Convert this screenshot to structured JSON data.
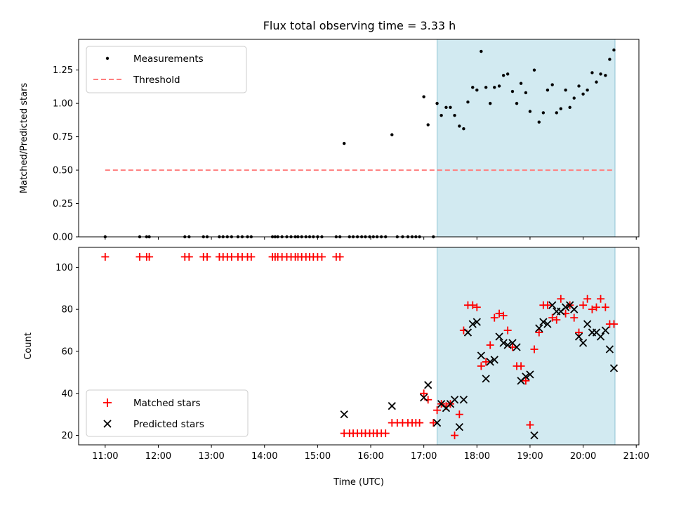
{
  "title": "Flux total observing time = 3.33 h",
  "chart_data": [
    {
      "type": "scatter",
      "ylabel": "Matched/Predicted stars",
      "xlim": [
        10.5,
        21.05
      ],
      "ylim": [
        0,
        1.48
      ],
      "yticks": [
        "0.00",
        "0.25",
        "0.50",
        "0.75",
        "1.00",
        "1.25"
      ],
      "ytick_values": [
        0,
        0.25,
        0.5,
        0.75,
        1.0,
        1.25
      ],
      "shaded_span": [
        17.25,
        20.6
      ],
      "shade_color": "#add8e6",
      "legend": [
        {
          "name": "Measurements",
          "marker": "dot",
          "color": "#000000"
        },
        {
          "name": "Threshold",
          "marker": "dashed-line",
          "color": "#ff7f7f"
        }
      ],
      "threshold": {
        "x": [
          11.0,
          20.6
        ],
        "y": 0.5
      },
      "x": [
        11.0,
        11.65,
        11.78,
        11.83,
        12.5,
        12.58,
        12.85,
        12.92,
        13.15,
        13.22,
        13.3,
        13.38,
        13.5,
        13.58,
        13.68,
        13.75,
        14.15,
        14.2,
        14.25,
        14.33,
        14.42,
        14.5,
        14.58,
        14.63,
        14.7,
        14.78,
        14.85,
        14.92,
        15.0,
        15.08,
        15.35,
        15.42,
        15.5,
        15.6,
        15.67,
        15.75,
        15.83,
        15.9,
        15.98,
        16.05,
        16.12,
        16.2,
        16.28,
        16.4,
        16.5,
        16.6,
        16.7,
        16.78,
        16.85,
        16.92,
        17.0,
        17.08,
        17.18,
        17.25,
        17.33,
        17.42,
        17.5,
        17.58,
        17.67,
        17.75,
        17.83,
        17.92,
        18.0,
        18.08,
        18.17,
        18.25,
        18.33,
        18.42,
        18.5,
        18.58,
        18.67,
        18.75,
        18.83,
        18.92,
        19.0,
        19.08,
        19.17,
        19.25,
        19.33,
        19.42,
        19.5,
        19.58,
        19.67,
        19.75,
        19.83,
        19.92,
        20.0,
        20.08,
        20.17,
        20.25,
        20.33,
        20.42,
        20.5,
        20.58
      ],
      "y": [
        0,
        0,
        0,
        0,
        0,
        0,
        0,
        0,
        0,
        0,
        0,
        0,
        0,
        0,
        0,
        0,
        0,
        0,
        0,
        0,
        0,
        0,
        0,
        0,
        0,
        0,
        0,
        0,
        0,
        0,
        0,
        0,
        0.7,
        0,
        0,
        0,
        0,
        0,
        0,
        0,
        0,
        0,
        0,
        0.765,
        0,
        0,
        0,
        0,
        0,
        0,
        1.05,
        0.84,
        0,
        1.0,
        0.91,
        0.97,
        0.97,
        0.91,
        0.83,
        0.81,
        1.01,
        1.12,
        1.1,
        1.39,
        1.12,
        1.0,
        1.12,
        1.13,
        1.21,
        1.22,
        1.09,
        1.0,
        1.15,
        1.08,
        0.94,
        1.25,
        0.86,
        0.93,
        1.1,
        1.14,
        0.93,
        0.96,
        1.1,
        0.97,
        1.04,
        1.13,
        1.07,
        1.1,
        1.23,
        1.16,
        1.22,
        1.21,
        1.33,
        1.4
      ]
    },
    {
      "type": "scatter",
      "ylabel": "Count",
      "xlabel": "Time (UTC)",
      "xlim": [
        10.5,
        21.05
      ],
      "ylim": [
        15.5,
        109.5
      ],
      "yticks": [
        "20",
        "40",
        "60",
        "80",
        "100"
      ],
      "ytick_values": [
        20,
        40,
        60,
        80,
        100
      ],
      "xticks": [
        "11:00",
        "12:00",
        "13:00",
        "14:00",
        "15:00",
        "16:00",
        "17:00",
        "18:00",
        "19:00",
        "20:00",
        "21:00"
      ],
      "xtick_values": [
        11,
        12,
        13,
        14,
        15,
        16,
        17,
        18,
        19,
        20,
        21
      ],
      "shaded_span": [
        17.25,
        20.6
      ],
      "shade_color": "#add8e6",
      "legend": [
        {
          "name": "Matched stars",
          "marker": "plus",
          "color": "#ff0000"
        },
        {
          "name": "Predicted stars",
          "marker": "x",
          "color": "#000000"
        }
      ],
      "matched": {
        "x": [
          11.0,
          11.65,
          11.78,
          11.83,
          12.5,
          12.58,
          12.85,
          12.92,
          13.15,
          13.22,
          13.3,
          13.38,
          13.5,
          13.58,
          13.68,
          13.75,
          14.15,
          14.2,
          14.25,
          14.33,
          14.42,
          14.5,
          14.58,
          14.63,
          14.7,
          14.78,
          14.85,
          14.92,
          15.0,
          15.08,
          15.35,
          15.42,
          15.5,
          15.6,
          15.67,
          15.75,
          15.83,
          15.9,
          15.98,
          16.05,
          16.12,
          16.2,
          16.28,
          16.4,
          16.5,
          16.6,
          16.7,
          16.78,
          16.85,
          16.92,
          17.0,
          17.08,
          17.18,
          17.25,
          17.33,
          17.42,
          17.5,
          17.58,
          17.67,
          17.75,
          17.83,
          17.92,
          18.0,
          18.08,
          18.17,
          18.25,
          18.33,
          18.42,
          18.5,
          18.58,
          18.67,
          18.75,
          18.83,
          18.92,
          19.0,
          19.08,
          19.17,
          19.25,
          19.33,
          19.42,
          19.5,
          19.58,
          19.67,
          19.75,
          19.83,
          19.92,
          20.0,
          20.08,
          20.17,
          20.25,
          20.33,
          20.42,
          20.5,
          20.58
        ],
        "y": [
          105,
          105,
          105,
          105,
          105,
          105,
          105,
          105,
          105,
          105,
          105,
          105,
          105,
          105,
          105,
          105,
          105,
          105,
          105,
          105,
          105,
          105,
          105,
          105,
          105,
          105,
          105,
          105,
          105,
          105,
          105,
          105,
          21,
          21,
          21,
          21,
          21,
          21,
          21,
          21,
          21,
          21,
          21,
          26,
          26,
          26,
          26,
          26,
          26,
          26,
          40,
          37,
          26,
          32,
          35,
          34,
          35,
          20,
          30,
          70,
          82,
          82,
          81,
          53,
          55,
          63,
          76,
          78,
          77,
          70,
          62,
          53,
          53,
          46,
          25,
          61,
          69,
          82,
          82,
          76,
          75,
          85,
          78,
          82,
          76,
          69,
          82,
          85,
          80,
          81,
          85,
          81,
          73,
          73
        ]
      },
      "predicted": {
        "x": [
          15.5,
          16.4,
          17.0,
          17.08,
          17.25,
          17.33,
          17.42,
          17.5,
          17.58,
          17.67,
          17.75,
          17.83,
          17.92,
          18.0,
          18.08,
          18.17,
          18.25,
          18.33,
          18.42,
          18.5,
          18.58,
          18.67,
          18.75,
          18.83,
          18.92,
          19.0,
          19.08,
          19.17,
          19.25,
          19.33,
          19.42,
          19.5,
          19.58,
          19.67,
          19.75,
          19.83,
          19.92,
          20.0,
          20.08,
          20.17,
          20.25,
          20.33,
          20.42,
          20.5,
          20.58
        ],
        "y": [
          30,
          34,
          38,
          44,
          26,
          35,
          33,
          35,
          37,
          24,
          37,
          69,
          73,
          74,
          58,
          47,
          55,
          56,
          67,
          64,
          63,
          64,
          62,
          46,
          48,
          49,
          20,
          71,
          74,
          73,
          82,
          79,
          79,
          81,
          82,
          80,
          67,
          64,
          73,
          69,
          69,
          67,
          70,
          61,
          52
        ]
      }
    }
  ]
}
